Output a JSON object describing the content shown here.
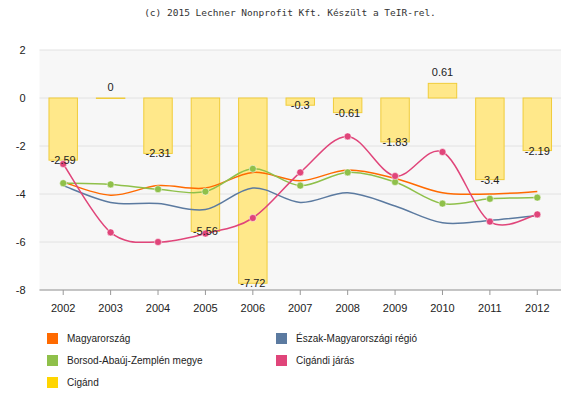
{
  "chart_data": {
    "type": "bar",
    "title": "(c) 2015 Lechner Nonprofit Kft. Készült a TeIR-rel.",
    "categories": [
      "2002",
      "2003",
      "2004",
      "2005",
      "2006",
      "2007",
      "2008",
      "2009",
      "2010",
      "2011",
      "2012"
    ],
    "series": [
      {
        "name": "Magyarország",
        "type": "line",
        "color": "#ff6a00",
        "marker": "none",
        "values": [
          -3.5,
          -4.05,
          -3.65,
          -3.75,
          -3.1,
          -3.45,
          -3.0,
          -3.35,
          -3.95,
          -4.0,
          -3.9
        ]
      },
      {
        "name": "Észak-Magyarországi régió",
        "type": "line",
        "color": "#5b7aa0",
        "marker": "none",
        "values": [
          -3.65,
          -4.35,
          -4.4,
          -4.65,
          -3.75,
          -4.35,
          -3.95,
          -4.5,
          -5.2,
          -5.1,
          -4.9
        ]
      },
      {
        "name": "Borsod-Abaúj-Zemplén megye",
        "type": "line",
        "color": "#8fc04a",
        "marker": "circle",
        "values": [
          -3.55,
          -3.6,
          -3.8,
          -3.9,
          -2.95,
          -3.65,
          -3.1,
          -3.5,
          -4.4,
          -4.2,
          -4.15
        ]
      },
      {
        "name": "Cigándi járás",
        "type": "line",
        "color": "#e0457a",
        "marker": "circle",
        "values": [
          -2.75,
          -5.6,
          -6.0,
          -5.65,
          -5.0,
          -3.1,
          -1.6,
          -3.25,
          -2.25,
          -5.15,
          -4.85
        ]
      },
      {
        "name": "Cigánd",
        "type": "bar",
        "color": "#ffe88a",
        "values": [
          -2.59,
          0,
          -2.31,
          -5.56,
          -7.72,
          -0.3,
          -0.61,
          -1.83,
          0.61,
          -3.4,
          -2.19
        ]
      }
    ],
    "ylim": [
      -8,
      2
    ],
    "yticks": [
      -8,
      -6,
      -4,
      -2,
      0,
      2
    ],
    "grid": true,
    "legend": "bottom",
    "data_labels": true
  }
}
